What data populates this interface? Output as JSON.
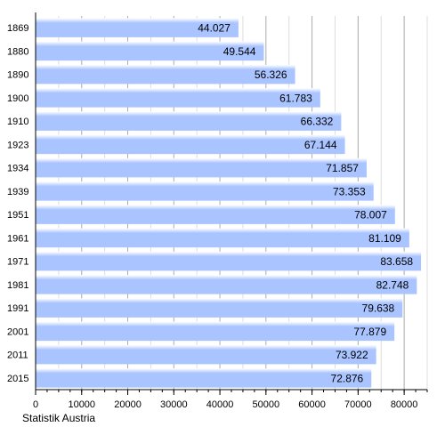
{
  "chart_data": {
    "type": "bar",
    "orientation": "horizontal",
    "categories": [
      "1869",
      "1880",
      "1890",
      "1900",
      "1910",
      "1923",
      "1934",
      "1939",
      "1951",
      "1961",
      "1971",
      "1981",
      "1991",
      "2001",
      "2011",
      "2015"
    ],
    "values": [
      44027,
      49544,
      56326,
      61783,
      66332,
      67144,
      71857,
      73353,
      78007,
      81109,
      83658,
      82748,
      79638,
      77879,
      73922,
      72876
    ],
    "value_labels": [
      "44.027",
      "49.544",
      "56.326",
      "61.783",
      "66.332",
      "67.144",
      "71.857",
      "73.353",
      "78.007",
      "81.109",
      "83.658",
      "82.748",
      "79.638",
      "77.879",
      "73.922",
      "72.876"
    ],
    "x_ticks": [
      0,
      10000,
      20000,
      30000,
      40000,
      50000,
      60000,
      70000,
      80000
    ],
    "x_tick_labels": [
      "0",
      "10000",
      "20000",
      "30000",
      "40000",
      "50000",
      "60000",
      "70000",
      "80000"
    ],
    "xlim": [
      0,
      85000
    ],
    "grid": "vertical",
    "legend": "none",
    "bar_color": "#aac4ff",
    "source": "Statistik Austria"
  }
}
